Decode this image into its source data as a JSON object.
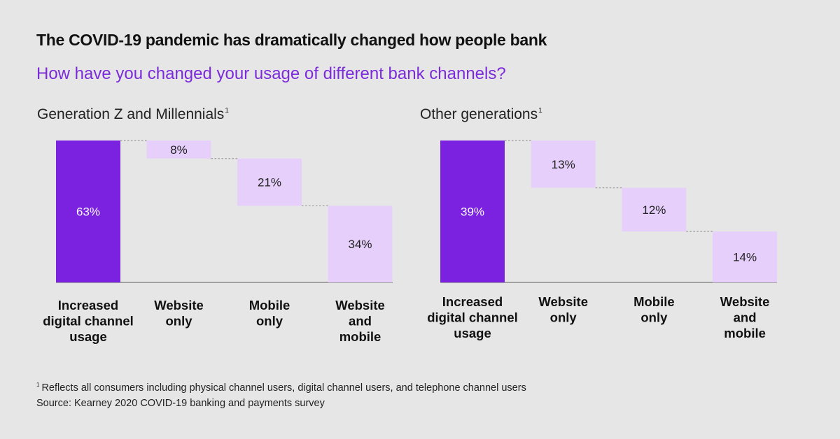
{
  "title": "The COVID-19 pandemic has dramatically changed how people bank",
  "subtitle": "How have you changed your usage of different bank channels?",
  "footnotes": {
    "marker": "1",
    "note": "Reflects all consumers including physical channel users, digital channel users, and telephone channel users",
    "source": "Source: Kearney 2020 COVID-19 banking and payments survey"
  },
  "colors": {
    "total_bar": "#7a22e0",
    "segment_bar": "#e6d0fb",
    "connector": "#9a9a9a",
    "baseline": "#8a8a8a"
  },
  "chart_data": [
    {
      "type": "bar",
      "variant": "waterfall",
      "title": "Generation Z and Millennials",
      "title_marker": "1",
      "categories": [
        [
          "Increased",
          "digital channel",
          "usage"
        ],
        [
          "Website",
          "only"
        ],
        [
          "Mobile",
          "only"
        ],
        [
          "Website",
          "and",
          "mobile"
        ]
      ],
      "values": [
        63,
        8,
        21,
        34
      ],
      "data_labels": [
        "63%",
        "8%",
        "21%",
        "34%"
      ],
      "total_index": 0,
      "ylim": [
        0,
        63
      ]
    },
    {
      "type": "bar",
      "variant": "waterfall",
      "title": "Other generations",
      "title_marker": "1",
      "categories": [
        [
          "Increased",
          "digital channel",
          "usage"
        ],
        [
          "Website",
          "only"
        ],
        [
          "Mobile",
          "only"
        ],
        [
          "Website",
          "and",
          "mobile"
        ]
      ],
      "values": [
        39,
        13,
        12,
        14
      ],
      "data_labels": [
        "39%",
        "13%",
        "12%",
        "14%"
      ],
      "total_index": 0,
      "ylim": [
        0,
        39
      ]
    }
  ]
}
